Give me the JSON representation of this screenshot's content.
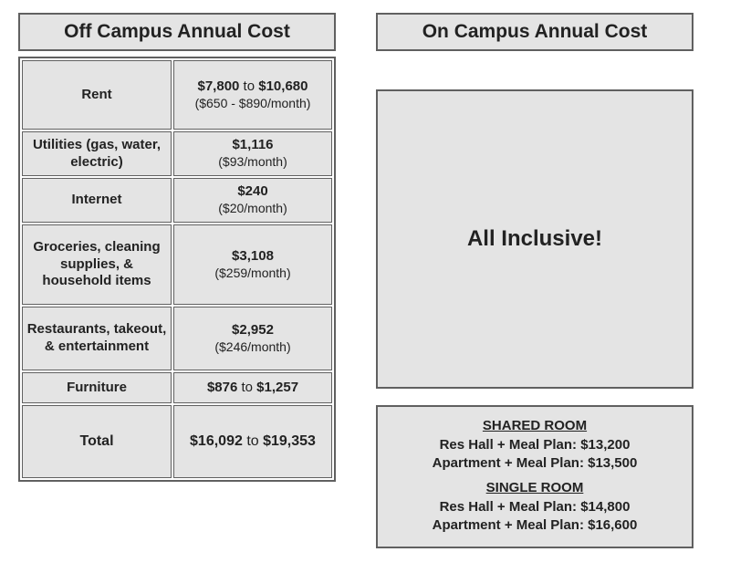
{
  "off_campus": {
    "title": "Off Campus Annual Cost",
    "rows": {
      "rent": {
        "label": "Rent",
        "primary_html": "<b>$7,800</b> to <b>$10,680</b>",
        "secondary": "($650 - $890/month)"
      },
      "utilities": {
        "label": "Utilities (gas, water, electric)",
        "primary_html": "<b>$1,116</b>",
        "secondary": "($93/month)"
      },
      "internet": {
        "label": "Internet",
        "primary_html": "<b>$240</b>",
        "secondary": "($20/month)"
      },
      "groceries": {
        "label": "Groceries, cleaning supplies, & household items",
        "primary_html": "<b>$3,108</b>",
        "secondary": "($259/month)"
      },
      "restaurants": {
        "label": "Restaurants, takeout, & entertainment",
        "primary_html": "<b>$2,952</b>",
        "secondary": "($246/month)"
      },
      "furniture": {
        "label": "Furniture",
        "primary_html": "<b>$876</b> to <b>$1,257</b>",
        "secondary": ""
      },
      "total": {
        "label": "Total",
        "primary_html": "<b>$16,092</b> to <b>$19,353</b>",
        "secondary": ""
      }
    }
  },
  "on_campus": {
    "title": "On Campus Annual Cost",
    "all_inclusive": "All Inclusive!",
    "shared_header": "SHARED ROOM",
    "shared_lines": [
      "Res Hall + Meal Plan: $13,200",
      "Apartment + Meal Plan: $13,500"
    ],
    "single_header": "SINGLE ROOM",
    "single_lines": [
      "Res Hall + Meal Plan: $14,800",
      "Apartment + Meal Plan: $16,600"
    ]
  },
  "style": {
    "cell_bg": "#e4e4e4",
    "border_color": "#606060",
    "text_color": "#222222",
    "page_bg": "#ffffff"
  }
}
